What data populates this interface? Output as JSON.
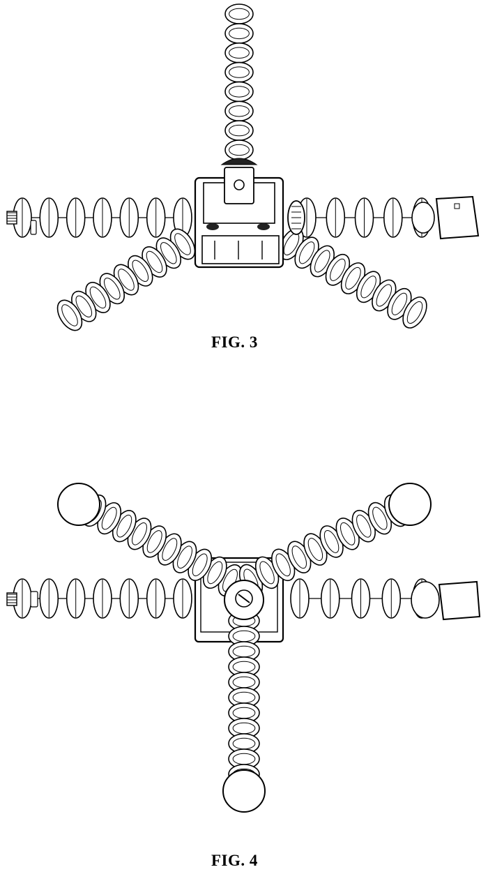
{
  "figures": [
    {
      "label": "FIG. 3"
    },
    {
      "label": "FIG. 4"
    }
  ],
  "colors": {
    "line": "#000000",
    "fill": "#ffffff",
    "shade": "#222222"
  }
}
